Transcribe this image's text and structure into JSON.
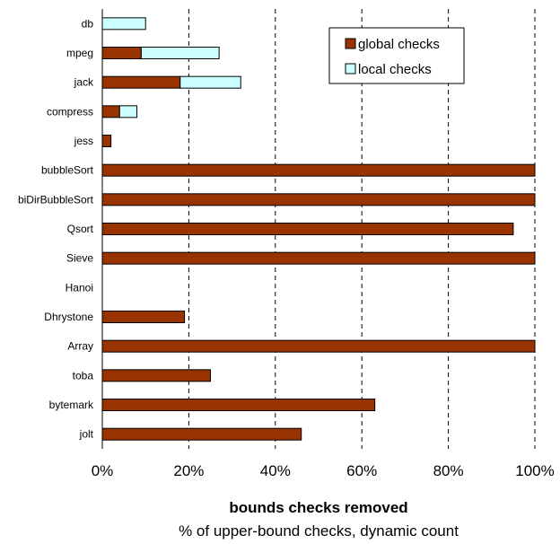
{
  "chart_data": {
    "type": "bar",
    "orientation": "horizontal",
    "stacked": true,
    "categories": [
      "db",
      "mpeg",
      "jack",
      "compress",
      "jess",
      "bubbleSort",
      "biDirBubbleSort",
      "Qsort",
      "Sieve",
      "Hanoi",
      "Dhrystone",
      "Array",
      "toba",
      "bytemark",
      "jolt"
    ],
    "series": [
      {
        "name": "global checks",
        "color": "#993300",
        "values": [
          0,
          9,
          18,
          4,
          2,
          100,
          100,
          95,
          100,
          0,
          19,
          100,
          25,
          63,
          46
        ]
      },
      {
        "name": "local checks",
        "color": "#ccffff",
        "values": [
          10,
          18,
          14,
          4,
          0,
          0,
          0,
          0,
          0,
          0,
          0,
          0,
          0,
          0,
          0
        ]
      }
    ],
    "xlim": [
      0,
      100
    ],
    "xticks": [
      "0%",
      "20%",
      "40%",
      "60%",
      "80%",
      "100%"
    ],
    "xgrid": "dashed",
    "legend_position": "top-right",
    "xlabel": "bounds checks removed",
    "xsublabel": "% of upper-bound checks, dynamic count"
  }
}
